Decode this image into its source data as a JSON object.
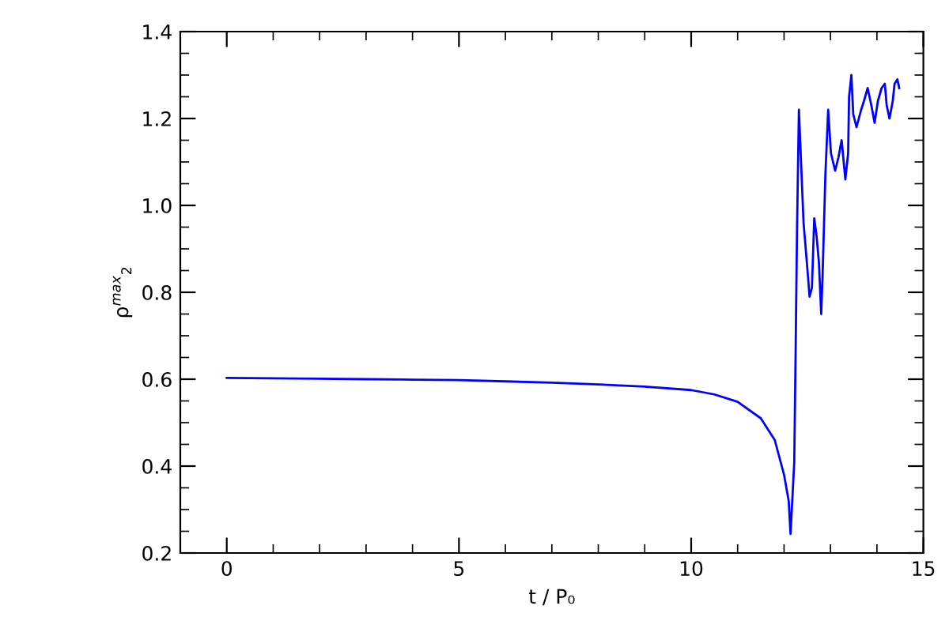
{
  "chart_data": {
    "type": "line",
    "xlabel": "t / P₀",
    "ylabel": "ρ$^{max}$$_{2}$",
    "series": [
      {
        "color": "#0000ff",
        "x": [
          0,
          1,
          2,
          3,
          4,
          5,
          6,
          7,
          8,
          9,
          10,
          10.5,
          11,
          11.5,
          11.8,
          12.0,
          12.1,
          12.14,
          12.22,
          12.25,
          12.28,
          12.32,
          12.42,
          12.49,
          12.55,
          12.6,
          12.65,
          12.7,
          12.75,
          12.8,
          12.83,
          12.89,
          12.95,
          13.01,
          13.1,
          13.17,
          13.24,
          13.32,
          13.38,
          13.4,
          13.45,
          13.49,
          13.56,
          13.66,
          13.72,
          13.8,
          13.88,
          13.95,
          14.02,
          14.1,
          14.17,
          14.21,
          14.27,
          14.34,
          14.38,
          14.44,
          14.48
        ],
        "values": [
          0.603,
          0.602,
          0.601,
          0.6,
          0.599,
          0.598,
          0.595,
          0.592,
          0.588,
          0.583,
          0.575,
          0.565,
          0.548,
          0.51,
          0.46,
          0.38,
          0.32,
          0.244,
          0.41,
          0.67,
          0.95,
          1.22,
          0.96,
          0.87,
          0.79,
          0.81,
          0.97,
          0.93,
          0.87,
          0.75,
          0.84,
          1.07,
          1.22,
          1.12,
          1.08,
          1.11,
          1.15,
          1.06,
          1.12,
          1.25,
          1.3,
          1.21,
          1.18,
          1.22,
          1.24,
          1.27,
          1.23,
          1.19,
          1.24,
          1.27,
          1.28,
          1.23,
          1.2,
          1.24,
          1.28,
          1.29,
          1.27
        ]
      }
    ],
    "xlim": [
      -1,
      15
    ],
    "xticks": [
      0,
      5,
      10,
      15
    ],
    "ylim": [
      0.2,
      1.4
    ],
    "yticks": [
      0.2,
      0.4,
      0.6,
      0.8,
      {
        "value": 1.0,
        "label": "1.0"
      },
      1.2,
      1.4
    ],
    "grid": false,
    "legend": false,
    "marker": "none",
    "line_style": "solid"
  }
}
